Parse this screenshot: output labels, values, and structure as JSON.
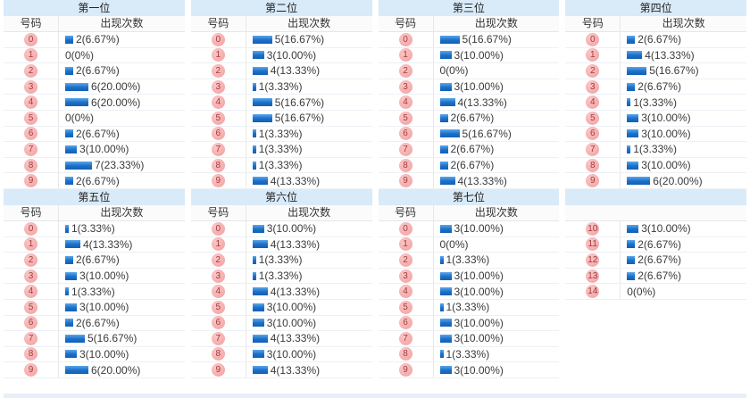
{
  "page": {
    "description": "lottery digit frequency statistics grid",
    "total_draws": 30
  },
  "colors": {
    "title_bg": "#d9eaf8",
    "bar_blue_top": "#5aa7e8",
    "bar_blue_bottom": "#1360b4",
    "badge_pink": "#f29e9e",
    "badge_text": "#a03b3b",
    "footer_bar": "#e7f0f9"
  },
  "chart_data": [
    {
      "type": "bar",
      "title": "第一位",
      "xlabel": "号码",
      "ylabel": "出现次数",
      "categories": [
        "0",
        "1",
        "2",
        "3",
        "4",
        "5",
        "6",
        "7",
        "8",
        "9"
      ],
      "values": [
        2,
        0,
        2,
        6,
        6,
        0,
        2,
        3,
        7,
        2
      ],
      "labels": [
        "2(6.67%)",
        "0(0%)",
        "2(6.67%)",
        "6(20.00%)",
        "6(20.00%)",
        "0(0%)",
        "2(6.67%)",
        "3(10.00%)",
        "7(23.33%)",
        "2(6.67%)"
      ]
    },
    {
      "type": "bar",
      "title": "第二位",
      "xlabel": "号码",
      "ylabel": "出现次数",
      "categories": [
        "0",
        "1",
        "2",
        "3",
        "4",
        "5",
        "6",
        "7",
        "8",
        "9"
      ],
      "values": [
        5,
        3,
        4,
        1,
        5,
        5,
        1,
        1,
        1,
        4
      ],
      "labels": [
        "5(16.67%)",
        "3(10.00%)",
        "4(13.33%)",
        "1(3.33%)",
        "5(16.67%)",
        "5(16.67%)",
        "1(3.33%)",
        "1(3.33%)",
        "1(3.33%)",
        "4(13.33%)"
      ]
    },
    {
      "type": "bar",
      "title": "第三位",
      "xlabel": "号码",
      "ylabel": "出现次数",
      "categories": [
        "0",
        "1",
        "2",
        "3",
        "4",
        "5",
        "6",
        "7",
        "8",
        "9"
      ],
      "values": [
        5,
        3,
        0,
        3,
        4,
        2,
        5,
        2,
        2,
        4
      ],
      "labels": [
        "5(16.67%)",
        "3(10.00%)",
        "0(0%)",
        "3(10.00%)",
        "4(13.33%)",
        "2(6.67%)",
        "5(16.67%)",
        "2(6.67%)",
        "2(6.67%)",
        "4(13.33%)"
      ]
    },
    {
      "type": "bar",
      "title": "第四位",
      "xlabel": "号码",
      "ylabel": "出现次数",
      "categories": [
        "0",
        "1",
        "2",
        "3",
        "4",
        "5",
        "6",
        "7",
        "8",
        "9"
      ],
      "values": [
        2,
        4,
        5,
        2,
        1,
        3,
        3,
        1,
        3,
        6
      ],
      "labels": [
        "2(6.67%)",
        "4(13.33%)",
        "5(16.67%)",
        "2(6.67%)",
        "1(3.33%)",
        "3(10.00%)",
        "3(10.00%)",
        "1(3.33%)",
        "3(10.00%)",
        "6(20.00%)"
      ]
    },
    {
      "type": "bar",
      "title": "第五位",
      "xlabel": "号码",
      "ylabel": "出现次数",
      "categories": [
        "0",
        "1",
        "2",
        "3",
        "4",
        "5",
        "6",
        "7",
        "8",
        "9"
      ],
      "values": [
        1,
        4,
        2,
        3,
        1,
        3,
        2,
        5,
        3,
        6
      ],
      "labels": [
        "1(3.33%)",
        "4(13.33%)",
        "2(6.67%)",
        "3(10.00%)",
        "1(3.33%)",
        "3(10.00%)",
        "2(6.67%)",
        "5(16.67%)",
        "3(10.00%)",
        "6(20.00%)"
      ]
    },
    {
      "type": "bar",
      "title": "第六位",
      "xlabel": "号码",
      "ylabel": "出现次数",
      "categories": [
        "0",
        "1",
        "2",
        "3",
        "4",
        "5",
        "6",
        "7",
        "8",
        "9"
      ],
      "values": [
        3,
        4,
        1,
        1,
        4,
        3,
        3,
        4,
        3,
        4
      ],
      "labels": [
        "3(10.00%)",
        "4(13.33%)",
        "1(3.33%)",
        "1(3.33%)",
        "4(13.33%)",
        "3(10.00%)",
        "3(10.00%)",
        "4(13.33%)",
        "3(10.00%)",
        "4(13.33%)"
      ]
    },
    {
      "type": "bar",
      "title": "第七位",
      "xlabel": "号码",
      "ylabel": "出现次数",
      "categories": [
        "0",
        "1",
        "2",
        "3",
        "4",
        "5",
        "6",
        "7",
        "8",
        "9"
      ],
      "values": [
        3,
        0,
        1,
        3,
        3,
        1,
        3,
        3,
        1,
        3
      ],
      "labels": [
        "3(10.00%)",
        "0(0%)",
        "1(3.33%)",
        "3(10.00%)",
        "3(10.00%)",
        "1(3.33%)",
        "3(10.00%)",
        "3(10.00%)",
        "1(3.33%)",
        "3(10.00%)"
      ]
    },
    {
      "type": "bar",
      "title": "",
      "xlabel": "",
      "ylabel": "",
      "categories": [
        "10",
        "11",
        "12",
        "13",
        "14"
      ],
      "values": [
        3,
        2,
        2,
        2,
        0
      ],
      "labels": [
        "3(10.00%)",
        "2(6.67%)",
        "2(6.67%)",
        "2(6.67%)",
        "0(0%)"
      ]
    }
  ]
}
